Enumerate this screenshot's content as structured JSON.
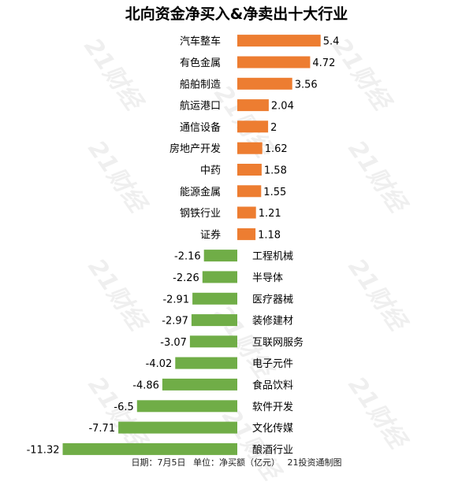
{
  "chart_data": {
    "type": "bar",
    "orientation": "horizontal",
    "title": "北向资金净买入&净卖出十大行业",
    "categories": [
      "汽车整车",
      "有色金属",
      "船舶制造",
      "航运港口",
      "通信设备",
      "房地产开发",
      "中药",
      "能源金属",
      "钢铁行业",
      "证券",
      "工程机械",
      "半导体",
      "医疗器械",
      "装修建材",
      "互联网服务",
      "电子元件",
      "食品饮料",
      "软件开发",
      "文化传媒",
      "酿酒行业"
    ],
    "values": [
      5.4,
      4.72,
      3.56,
      2.04,
      2,
      1.62,
      1.58,
      1.55,
      1.21,
      1.18,
      -2.16,
      -2.26,
      -2.91,
      -2.97,
      -3.07,
      -4.02,
      -4.86,
      -6.5,
      -7.71,
      -11.32
    ],
    "value_labels": [
      "5.4",
      "4.72",
      "3.56",
      "2.04",
      "2",
      "1.62",
      "1.58",
      "1.55",
      "1.21",
      "1.18",
      "-2.16",
      "-2.26",
      "-2.91",
      "-2.97",
      "-3.07",
      "-4.02",
      "-4.86",
      "-6.5",
      "-7.71",
      "-11.32"
    ],
    "colors": {
      "positive": "#ED7D31",
      "negative": "#70AD47"
    },
    "grid": false,
    "legend": "none"
  },
  "footer": {
    "date": "日期：7月5日",
    "unit": "单位：净买额（亿元）",
    "source": "21投资通制图"
  },
  "watermark": "21财经"
}
